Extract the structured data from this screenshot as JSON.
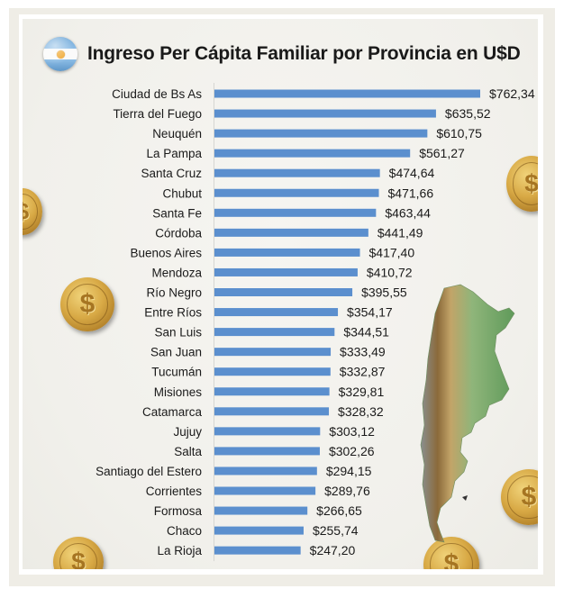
{
  "page": {
    "flag_icon": "argentina-flag-icon",
    "decorations": [
      "gold-dollar-coin",
      "argentina-relief-map"
    ],
    "bar_color": "#5b8fce"
  },
  "chart_data": {
    "type": "bar",
    "orientation": "horizontal",
    "title": "Ingreso Per Cápita Familiar por Provincia en U$D",
    "xlabel": "",
    "ylabel": "",
    "value_prefix": "$",
    "decimal_separator": ",",
    "grid": false,
    "legend": "none",
    "xlim": [
      0,
      762.34
    ],
    "categories": [
      "Ciudad de Bs As",
      "Tierra del Fuego",
      "Neuquén",
      "La Pampa",
      "Santa Cruz",
      "Chubut",
      "Santa Fe",
      "Córdoba",
      "Buenos Aires",
      "Mendoza",
      "Río Negro",
      "Entre Ríos",
      "San Luis",
      "San Juan",
      "Tucumán",
      "Misiones",
      "Catamarca",
      "Jujuy",
      "Salta",
      "Santiago del Estero",
      "Corrientes",
      "Formosa",
      "Chaco",
      "La Rioja"
    ],
    "values": [
      762.34,
      635.52,
      610.75,
      561.27,
      474.64,
      471.66,
      463.44,
      441.49,
      417.4,
      410.72,
      395.55,
      354.17,
      344.51,
      333.49,
      332.87,
      329.81,
      328.32,
      303.12,
      302.26,
      294.15,
      289.76,
      266.65,
      255.74,
      247.2
    ],
    "data_labels": [
      "$762,34",
      "$635,52",
      "$610,75",
      "$561,27",
      "$474,64",
      "$471,66",
      "$463,44",
      "$441,49",
      "$417,40",
      "$410,72",
      "$395,55",
      "$354,17",
      "$344,51",
      "$333,49",
      "$332,87",
      "$329,81",
      "$328,32",
      "$303,12",
      "$302,26",
      "$294,15",
      "$289,76",
      "$266,65",
      "$255,74",
      "$247,20"
    ]
  }
}
